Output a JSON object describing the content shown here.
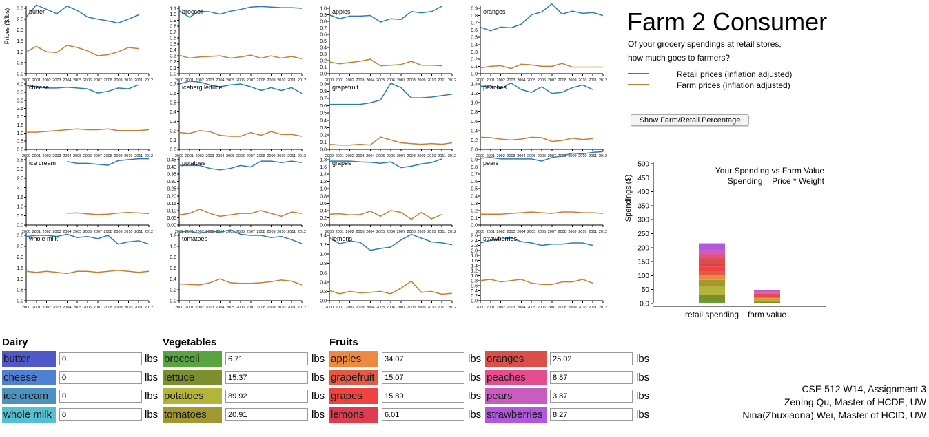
{
  "header": {
    "title": "Farm 2 Consumer",
    "subtitle_1": "Of your grocery spendings at retail stores,",
    "subtitle_2": "how much goes to farmers?"
  },
  "legend": {
    "retail": "Retail prices (inflation adjusted)",
    "farm": "Farm prices (inflation adjusted)",
    "retail_color": "#2b7bba",
    "farm_color": "#c87d36"
  },
  "toggle_label": "Show Farm/Retail Percentage",
  "credits": {
    "line1": "CSE 512 W14, Assignment 3",
    "line2": "Zening Qu, Master of HCDE, UW",
    "line3": "Nina(Zhuxiaona) Wei, Master of HCID, UW"
  },
  "chart_data": [
    {
      "type": "line",
      "ylabel": "Prices ($/lbs)",
      "x": [
        "2000",
        "2001",
        "2002",
        "2003",
        "2004",
        "2005",
        "2006",
        "2007",
        "2008",
        "2009",
        "2010",
        "2011",
        "2012"
      ],
      "panels": [
        {
          "title": "butter",
          "ymax": 3.0,
          "ystep": 0.5,
          "dec": 1,
          "retail": [
            2.6,
            3.15,
            2.95,
            2.75,
            3.1,
            2.9,
            2.6,
            2.5,
            2.42,
            2.32,
            2.5,
            2.7,
            null
          ],
          "farm": [
            1.0,
            1.25,
            1.0,
            0.97,
            1.3,
            1.2,
            1.05,
            0.82,
            0.87,
            1.0,
            1.2,
            1.15,
            null
          ]
        },
        {
          "title": "broccoli",
          "ymax": 1.1,
          "ystep": 0.1,
          "dec": 1,
          "retail": [
            1.06,
            0.95,
            1.05,
            1.04,
            1.0,
            1.05,
            1.08,
            1.12,
            1.13,
            1.12,
            1.11,
            1.11,
            1.1
          ],
          "farm": [
            0.31,
            0.26,
            0.28,
            0.29,
            0.3,
            0.26,
            0.28,
            0.31,
            0.26,
            0.3,
            0.26,
            0.29,
            0.25
          ]
        },
        {
          "title": "apples",
          "ymax": 1.0,
          "ystep": 0.1,
          "dec": 1,
          "retail": [
            0.9,
            0.84,
            0.88,
            0.88,
            0.89,
            0.79,
            0.84,
            0.83,
            0.95,
            0.93,
            0.95,
            1.03,
            null
          ],
          "farm": [
            0.18,
            0.15,
            0.17,
            0.19,
            0.22,
            0.12,
            0.13,
            0.14,
            0.19,
            0.13,
            0.13,
            0.12,
            null
          ]
        },
        {
          "title": "oranges",
          "ymax": 0.9,
          "ystep": 0.1,
          "dec": 1,
          "retail": [
            0.64,
            0.59,
            0.64,
            0.63,
            0.68,
            0.81,
            0.85,
            0.96,
            0.82,
            0.86,
            0.83,
            0.84,
            0.8
          ],
          "farm": [
            0.08,
            0.1,
            0.11,
            0.07,
            0.13,
            0.12,
            0.1,
            0.1,
            0.14,
            0.09,
            0.09,
            0.09,
            0.09
          ]
        },
        {
          "title": "cheese",
          "ymax": 4.0,
          "ystep": 0.5,
          "dec": 1,
          "retail": [
            3.9,
            3.85,
            3.75,
            3.75,
            3.8,
            3.75,
            3.7,
            3.45,
            3.55,
            3.75,
            3.7,
            3.95,
            null
          ],
          "farm": [
            1.05,
            1.05,
            1.1,
            1.15,
            1.2,
            1.25,
            1.2,
            1.2,
            1.25,
            1.15,
            1.15,
            1.15,
            1.2
          ]
        },
        {
          "title": "iceberg lettuce",
          "ymax": 0.7,
          "ystep": 0.1,
          "dec": 1,
          "retail": [
            0.7,
            0.73,
            0.72,
            0.69,
            0.67,
            0.69,
            0.7,
            0.67,
            0.63,
            0.66,
            0.63,
            0.66,
            0.6
          ],
          "farm": [
            0.18,
            0.17,
            0.2,
            0.19,
            0.15,
            0.14,
            0.14,
            0.18,
            0.15,
            0.19,
            0.16,
            0.16,
            0.14
          ]
        },
        {
          "title": "grapefruit",
          "ymax": 0.9,
          "ystep": 0.1,
          "dec": 1,
          "retail": [
            0.62,
            0.62,
            0.62,
            0.62,
            0.64,
            0.68,
            0.91,
            0.85,
            0.71,
            0.71,
            0.72,
            0.74,
            0.76
          ],
          "farm": [
            0.07,
            0.06,
            0.06,
            0.07,
            0.06,
            0.17,
            0.13,
            0.09,
            0.08,
            0.07,
            0.08,
            0.07,
            0.09
          ]
        },
        {
          "title": "peaches",
          "ymax": 1.4,
          "ystep": 0.2,
          "dec": 1,
          "retail": [
            1.35,
            1.36,
            1.3,
            1.42,
            1.28,
            1.22,
            1.34,
            1.2,
            1.22,
            1.32,
            1.38,
            1.28,
            null
          ],
          "farm": [
            0.26,
            0.25,
            0.22,
            0.2,
            0.22,
            0.26,
            0.25,
            0.17,
            0.19,
            0.24,
            0.21,
            0.23,
            null
          ]
        },
        {
          "title": "ice cream",
          "ymax": 3.5,
          "ystep": 0.5,
          "dec": 1,
          "retail": [
            null,
            null,
            null,
            null,
            3.4,
            3.3,
            3.3,
            3.25,
            3.2,
            3.45,
            3.5,
            3.55,
            3.55
          ],
          "farm": [
            null,
            null,
            null,
            null,
            0.63,
            0.65,
            0.6,
            0.56,
            0.58,
            0.64,
            0.67,
            0.65,
            0.61
          ]
        },
        {
          "title": "potatoes",
          "ymax": 0.45,
          "ystep": 0.05,
          "dec": 2,
          "retail": [
            0.41,
            0.41,
            0.41,
            0.39,
            0.38,
            0.39,
            0.41,
            0.4,
            0.44,
            0.44,
            0.43,
            0.44,
            0.43
          ],
          "farm": [
            0.07,
            0.08,
            0.11,
            0.08,
            0.06,
            0.07,
            0.08,
            0.08,
            0.1,
            0.08,
            0.06,
            0.09,
            0.08
          ]
        },
        {
          "title": "grapes",
          "ymax": 1.8,
          "ystep": 0.2,
          "dec": 1,
          "retail": [
            1.76,
            1.76,
            1.76,
            1.74,
            1.73,
            1.7,
            1.74,
            1.58,
            1.62,
            1.68,
            1.72,
            1.82,
            null
          ],
          "farm": [
            0.3,
            0.31,
            0.28,
            0.29,
            0.38,
            0.24,
            0.4,
            0.35,
            0.16,
            0.35,
            0.17,
            0.29,
            null
          ]
        },
        {
          "title": "pears",
          "ymax": 0.9,
          "ystep": 0.1,
          "dec": 1,
          "retail": [
            0.92,
            0.93,
            0.91,
            0.91,
            0.91,
            0.91,
            0.88,
            0.93,
            0.95,
            0.99,
            0.98,
            1.0,
            1.01
          ],
          "farm": [
            0.15,
            0.15,
            0.15,
            0.16,
            0.17,
            0.18,
            0.17,
            0.16,
            0.18,
            0.18,
            0.17,
            0.17,
            0.16
          ]
        },
        {
          "title": "whole milk",
          "ymax": 3.0,
          "ystep": 0.5,
          "dec": 1,
          "retail": [
            2.95,
            3.0,
            3.0,
            2.95,
            3.05,
            2.9,
            2.95,
            2.85,
            3.0,
            2.6,
            2.7,
            2.75,
            2.6
          ],
          "farm": [
            1.35,
            1.3,
            1.35,
            1.3,
            1.25,
            1.35,
            1.35,
            1.3,
            1.35,
            1.4,
            1.35,
            1.3,
            1.35
          ]
        },
        {
          "title": "tomatoes",
          "ymax": 1.2,
          "ystep": 0.2,
          "dec": 1,
          "retail": [
            1.26,
            1.28,
            1.24,
            1.28,
            1.26,
            1.3,
            1.22,
            1.2,
            1.2,
            1.16,
            1.18,
            1.12,
            1.05
          ],
          "farm": [
            0.31,
            0.3,
            0.29,
            0.33,
            0.4,
            0.33,
            0.32,
            0.32,
            0.33,
            0.35,
            0.38,
            0.36,
            0.29
          ]
        },
        {
          "title": "lemons",
          "ymax": 1.4,
          "ystep": 0.2,
          "dec": 1,
          "retail": [
            1.35,
            1.22,
            1.28,
            1.25,
            1.08,
            1.12,
            1.15,
            1.3,
            1.42,
            1.34,
            1.26,
            1.24,
            1.2
          ],
          "farm": [
            0.22,
            0.15,
            0.2,
            0.17,
            0.18,
            0.2,
            0.15,
            0.27,
            0.42,
            0.18,
            0.2,
            0.14,
            0.16
          ]
        },
        {
          "title": "strawberries",
          "ymax": 2.6,
          "ystep": 0.2,
          "dec": 1,
          "retail": [
            2.3,
            2.4,
            2.45,
            2.5,
            2.35,
            2.3,
            2.2,
            2.25,
            2.25,
            2.3,
            2.3,
            2.2,
            null
          ],
          "farm": [
            0.8,
            0.85,
            0.75,
            0.8,
            0.85,
            0.7,
            0.65,
            0.65,
            0.75,
            0.75,
            0.85,
            0.7,
            null
          ]
        }
      ]
    },
    {
      "type": "bar",
      "title": "Your Spending vs Farm Value",
      "subtitle": "Spending = Price * Weight",
      "ylabel": "Spendings ($)",
      "ylim": [
        0,
        500
      ],
      "yticks": [
        "0.0",
        "50",
        "100",
        "150",
        "200",
        "250",
        "300",
        "350",
        "400",
        "450",
        "500"
      ],
      "categories": [
        "retail spending",
        "farm value"
      ],
      "segment_colors": [
        "#5aa43f",
        "#7e8e2e",
        "#b3b43a",
        "#a29830",
        "#ee8a40",
        "#e15a45",
        "#ee4440",
        "#df3c50",
        "#da4f48",
        "#e44e8e",
        "#c95cbf",
        "#b358de"
      ],
      "retail_segments": [
        7.4,
        24.0,
        32.0,
        21.0,
        16.0,
        14.0,
        18.0,
        10.0,
        20.0,
        15.0,
        16.0,
        22.0
      ],
      "farm_segments": [
        2.0,
        5.0,
        6.0,
        4.5,
        3.0,
        3.0,
        5.0,
        2.5,
        4.0,
        4.0,
        4.0,
        6.0
      ]
    }
  ],
  "groups": [
    {
      "title": "Dairy",
      "items": [
        {
          "name": "butter",
          "value": "0",
          "color": "#5158c9"
        },
        {
          "name": "cheese",
          "value": "0",
          "color": "#5080d2"
        },
        {
          "name": "ice cream",
          "value": "0",
          "color": "#4d91c0"
        },
        {
          "name": "whole milk",
          "value": "0",
          "color": "#55c0d4"
        }
      ]
    },
    {
      "title": "Vegetables",
      "items": [
        {
          "name": "broccoli",
          "value": "6.71",
          "color": "#5aa43f"
        },
        {
          "name": "lettuce",
          "value": "15.37",
          "color": "#7e8e2e"
        },
        {
          "name": "potatoes",
          "value": "89.92",
          "color": "#b3b43a"
        },
        {
          "name": "tomatoes",
          "value": "20.91",
          "color": "#a29830"
        }
      ]
    },
    {
      "title": "Fruits",
      "items": [
        {
          "name": "apples",
          "value": "34.07",
          "color": "#ee8a40"
        },
        {
          "name": "grapefruit",
          "value": "15.07",
          "color": "#e15a45"
        },
        {
          "name": "grapes",
          "value": "15.89",
          "color": "#ee4440"
        },
        {
          "name": "lemons",
          "value": "6.01",
          "color": "#df3c50"
        }
      ]
    },
    {
      "title": "",
      "items": [
        {
          "name": "oranges",
          "value": "25.02",
          "color": "#da4f48"
        },
        {
          "name": "peaches",
          "value": "8.87",
          "color": "#e44e8e"
        },
        {
          "name": "pears",
          "value": "3.87",
          "color": "#c95cbf"
        },
        {
          "name": "strawberries",
          "value": "8.27",
          "color": "#b358de"
        }
      ]
    }
  ],
  "unit_label": "lbs"
}
